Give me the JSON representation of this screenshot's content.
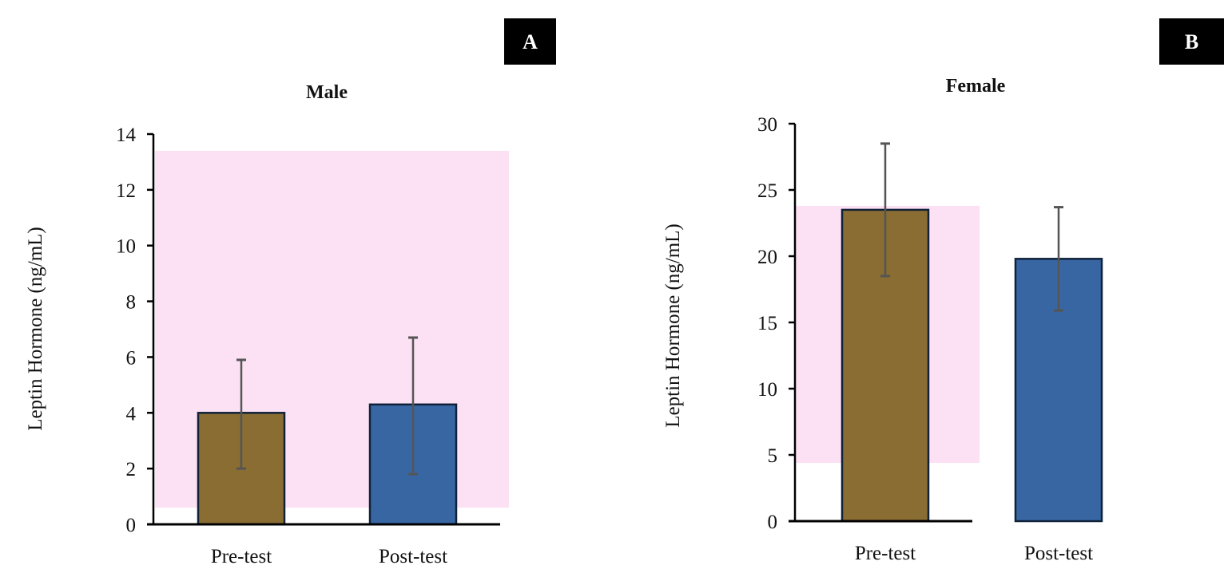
{
  "chart_data": [
    {
      "type": "bar",
      "panel_label": "A",
      "title": "Male",
      "xlabel": "",
      "ylabel": "Leptin Hormone (ng/mL)",
      "categories": [
        "Pre-test",
        "Post-test"
      ],
      "values": [
        4.0,
        4.3
      ],
      "error_upper": [
        5.9,
        6.7
      ],
      "error_lower": [
        2.0,
        1.8
      ],
      "ylim": [
        0,
        14
      ],
      "yticks": [
        0,
        2,
        4,
        6,
        8,
        10,
        12,
        14
      ],
      "reference_band": [
        0.6,
        13.4
      ],
      "colors": [
        "#8a6d33",
        "#3866a3"
      ],
      "band_color": "#fce0f4",
      "grid": false
    },
    {
      "type": "bar",
      "panel_label": "B",
      "title": "Female",
      "xlabel": "",
      "ylabel": "Leptin Hormone (ng/mL)",
      "categories": [
        "Pre-test",
        "Post-test"
      ],
      "values": [
        23.5,
        19.8
      ],
      "error_upper": [
        28.5,
        23.7
      ],
      "error_lower": [
        18.5,
        15.9
      ],
      "ylim": [
        0,
        30
      ],
      "yticks": [
        0,
        5,
        10,
        15,
        20,
        25,
        30
      ],
      "reference_band": [
        4.4,
        23.8
      ],
      "colors": [
        "#8a6d33",
        "#3866a3"
      ],
      "band_color": "#fce0f4",
      "grid": false
    }
  ]
}
